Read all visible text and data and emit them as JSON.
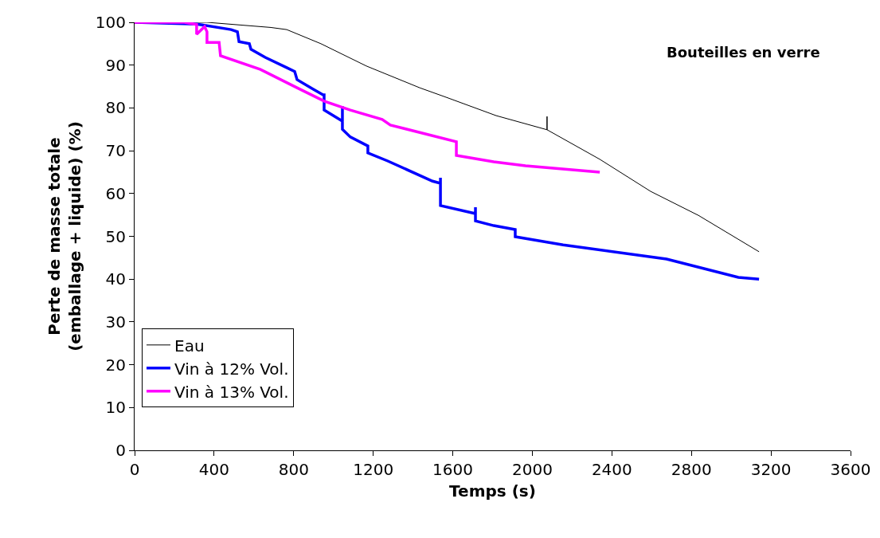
{
  "chart_data": {
    "type": "line",
    "xlabel": "Temps (s)",
    "ylabel": "Perte de masse totale\n(emballage + liquide) (%)",
    "annotations": [
      "Bouteilles en verre"
    ],
    "xlim": [
      0,
      3600
    ],
    "xticks": [
      0,
      400,
      800,
      1200,
      1600,
      2000,
      2400,
      2800,
      3200,
      3600
    ],
    "ylim": [
      0,
      100
    ],
    "yticks": [
      0,
      10,
      20,
      30,
      40,
      50,
      60,
      70,
      80,
      90,
      100
    ],
    "grid": false,
    "legend": "bottom left",
    "marker": "none",
    "line_style": "solid",
    "series": [
      {
        "name": "Eau",
        "color": "#000000",
        "x": [
          0,
          364,
          685,
          765,
          937,
          1165,
          1434,
          1566,
          1818,
          2074,
          2074,
          2074,
          2339,
          2595,
          2835,
          3140
        ],
        "values": [
          100,
          100,
          98.8,
          98.3,
          95,
          89.8,
          84.7,
          82.5,
          78.2,
          74.9,
          78,
          74.9,
          68,
          60.5,
          54.9,
          46.4
        ]
      },
      {
        "name": "Vin à 12% Vol.",
        "color": "#0000ff",
        "x": [
          0,
          312,
          485,
          517,
          525,
          577,
          585,
          657,
          765,
          805,
          817,
          897,
          953,
          953,
          953,
          1045,
          1045,
          1045,
          1085,
          1173,
          1173,
          1273,
          1498,
          1538,
          1538,
          1538,
          1714,
          1714,
          1714,
          1806,
          1914,
          1914,
          2155,
          2675,
          3036,
          3140
        ],
        "values": [
          100,
          99.6,
          98.3,
          97.8,
          95.5,
          95,
          93.7,
          91.8,
          89.4,
          88.5,
          86.6,
          84.4,
          82.9,
          83.4,
          79.5,
          76.9,
          80.4,
          75,
          73.2,
          71.1,
          69.5,
          67.6,
          62.9,
          62.4,
          63.7,
          57.2,
          55.3,
          56.8,
          53.6,
          52.5,
          51.6,
          49.9,
          48,
          44.7,
          40.4,
          40
        ]
      },
      {
        "name": "Vin à 13% Vol.",
        "color": "#ff00ff",
        "x": [
          0,
          250,
          312,
          312,
          352,
          364,
          364,
          425,
          432,
          633,
          817,
          953,
          1085,
          1245,
          1286,
          1618,
          1618,
          1806,
          1966,
          2339
        ],
        "values": [
          100,
          100,
          99.5,
          97.2,
          99,
          97.8,
          95.3,
          95.3,
          92.2,
          89,
          84.7,
          81.6,
          79.5,
          77.3,
          76,
          72.1,
          68.9,
          67.4,
          66.5,
          65
        ]
      }
    ]
  }
}
